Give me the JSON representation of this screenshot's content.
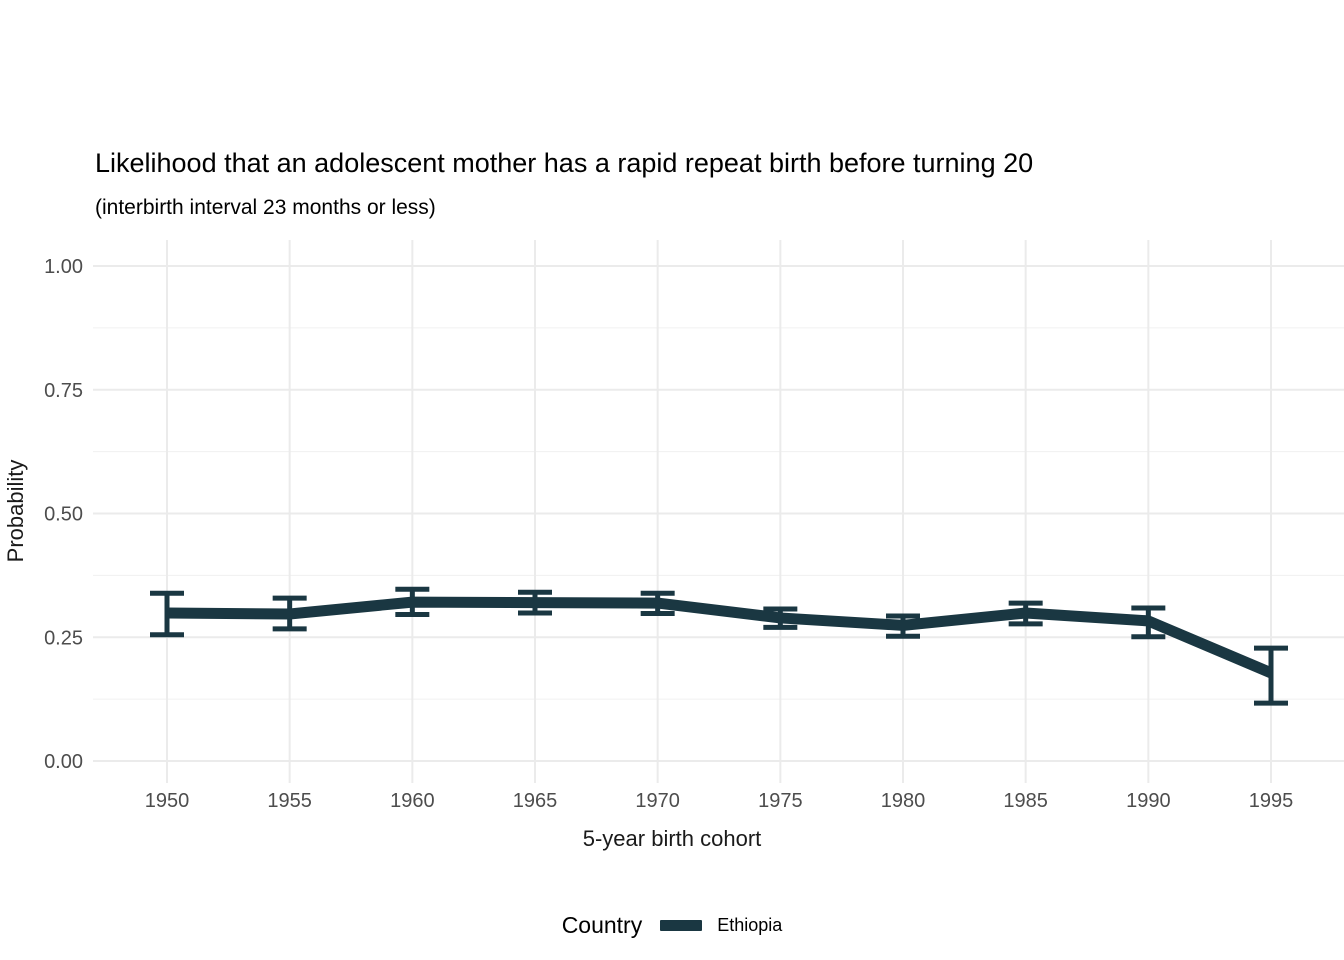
{
  "header": {
    "title": "Likelihood that an adolescent mother has a rapid repeat birth before turning 20",
    "subtitle": "(interbirth interval 23 months or less)"
  },
  "chart_data": {
    "type": "line",
    "title": "Likelihood that an adolescent mother has a rapid repeat birth before turning 20",
    "subtitle": "(interbirth interval 23 months or less)",
    "xlabel": "5-year birth cohort",
    "ylabel": "Probability",
    "x": [
      1950,
      1955,
      1960,
      1965,
      1970,
      1975,
      1980,
      1985,
      1990,
      1995
    ],
    "xtick_labels": [
      "1950",
      "1955",
      "1960",
      "1965",
      "1970",
      "1975",
      "1980",
      "1985",
      "1990",
      "1995"
    ],
    "series": [
      {
        "name": "Ethiopia",
        "color": "#1a3742",
        "values": [
          0.299,
          0.297,
          0.321,
          0.32,
          0.319,
          0.289,
          0.274,
          0.299,
          0.283,
          0.178
        ],
        "lower": [
          0.255,
          0.267,
          0.296,
          0.299,
          0.298,
          0.27,
          0.252,
          0.277,
          0.251,
          0.117
        ],
        "upper": [
          0.339,
          0.329,
          0.347,
          0.341,
          0.339,
          0.307,
          0.293,
          0.319,
          0.309,
          0.228
        ]
      }
    ],
    "error_bars": true,
    "ylim": [
      0,
      1
    ],
    "yticks": [
      0,
      0.25,
      0.5,
      0.75,
      1
    ],
    "ytick_labels": [
      "0.00",
      "0.25",
      "0.50",
      "0.75",
      "1.00"
    ],
    "y_minor_gridlines": [
      0.125,
      0.375,
      0.625,
      0.875
    ],
    "grid": "horizontal major+minor, vertical major, no axis lines",
    "legend": {
      "title": "Country",
      "position": "bottom",
      "items": [
        {
          "label": "Ethiopia",
          "color": "#1a3742"
        }
      ]
    }
  },
  "colors": {
    "background": "#ffffff",
    "grid_major": "#ebebeb",
    "grid_minor": "#f0f0f0",
    "tick_label_text": "#4d4d4d",
    "title_text": "#000000",
    "series_ethiopia": "#1a3742"
  }
}
